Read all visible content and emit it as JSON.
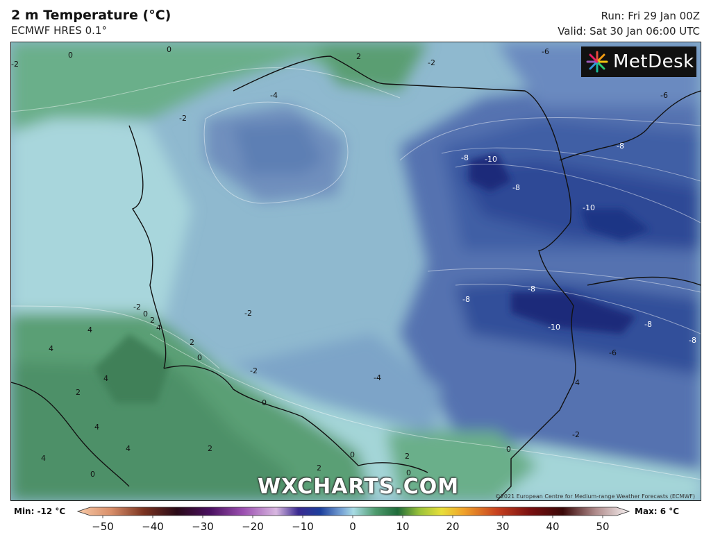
{
  "header": {
    "title": "2 m Temperature (°C)",
    "model": "ECMWF HRES 0.1°",
    "run": "Run: Fri 29 Jan 00Z",
    "valid": "Valid: Sat 30 Jan 06:00 UTC"
  },
  "logo_text": "MetDesk",
  "watermark": "WXCHARTS.COM",
  "copyright": "©2021 European Centre for Medium-range Weather Forecasts (ECMWF)",
  "colorbar": {
    "min_label": "Min: -12 °C",
    "max_label": "Max: 6 °C",
    "ticks": [
      "−50",
      "−40",
      "−30",
      "−20",
      "−10",
      "0",
      "10",
      "20",
      "30",
      "40",
      "50"
    ],
    "range": [
      -50,
      50
    ]
  },
  "contour_labels": [
    {
      "t": "0"
    },
    {
      "t": "0"
    },
    {
      "t": "-2"
    },
    {
      "t": "2"
    },
    {
      "t": "-2"
    },
    {
      "t": "-6"
    },
    {
      "t": "-6"
    },
    {
      "t": "-4"
    },
    {
      "t": "-2"
    },
    {
      "t": "-8"
    },
    {
      "t": "-10"
    },
    {
      "t": "-8"
    },
    {
      "t": "-8"
    },
    {
      "t": "-10"
    },
    {
      "t": "-8"
    },
    {
      "t": "-8"
    },
    {
      "t": "-10"
    },
    {
      "t": "-8"
    },
    {
      "t": "-8"
    },
    {
      "t": "-6"
    },
    {
      "t": "-2"
    },
    {
      "t": "-2"
    },
    {
      "t": "0"
    },
    {
      "t": "2"
    },
    {
      "t": "4"
    },
    {
      "t": "4"
    },
    {
      "t": "4"
    },
    {
      "t": "2"
    },
    {
      "t": "0"
    },
    {
      "t": "-2"
    },
    {
      "t": "0"
    },
    {
      "t": "-4"
    },
    {
      "t": "4"
    },
    {
      "t": "2"
    },
    {
      "t": "4"
    },
    {
      "t": "4"
    },
    {
      "t": "2"
    },
    {
      "t": "4"
    },
    {
      "t": "0"
    },
    {
      "t": "2"
    },
    {
      "t": "2"
    },
    {
      "t": "0"
    },
    {
      "t": "2"
    },
    {
      "t": "0"
    },
    {
      "t": "0"
    },
    {
      "t": "-2"
    },
    {
      "t": "4"
    }
  ],
  "colors": {
    "cold_deep": "#1a2c7a",
    "cold": "#3a5aa8",
    "cool": "#7f9ec8",
    "mild": "#a9d4dc",
    "warm": "#4f9b6e"
  }
}
